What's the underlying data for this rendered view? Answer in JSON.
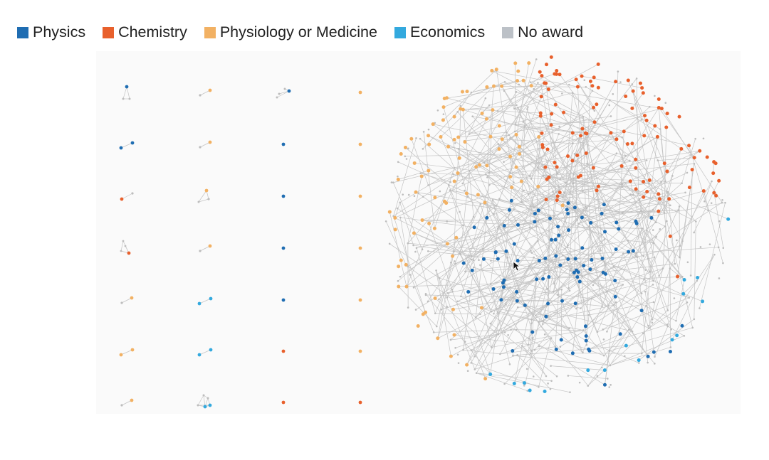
{
  "legend": [
    {
      "label": "Physics",
      "color": "#1f6db2",
      "key": "physics"
    },
    {
      "label": "Chemistry",
      "color": "#e8602c",
      "key": "chemistry"
    },
    {
      "label": "Physiology or Medicine",
      "color": "#f2b163",
      "key": "medicine"
    },
    {
      "label": "Economics",
      "color": "#33a9de",
      "key": "economics"
    },
    {
      "label": "No award",
      "color": "#bcc1c7",
      "key": "none"
    }
  ],
  "colors": {
    "edge": "#c4c4c4",
    "physics": "#1f6db2",
    "chemistry": "#e8602c",
    "medicine": "#f2b163",
    "economics": "#33a9de",
    "none": "#bdbdbd"
  },
  "small_components": [
    {
      "row": 0,
      "col": 0,
      "kind": "triangle",
      "award": "physics"
    },
    {
      "row": 0,
      "col": 1,
      "kind": "pair",
      "award": "medicine"
    },
    {
      "row": 0,
      "col": 2,
      "kind": "fan",
      "award": "physics"
    },
    {
      "row": 0,
      "col": 3,
      "kind": "single",
      "award": "medicine"
    },
    {
      "row": 1,
      "col": 0,
      "kind": "pair2",
      "award": "physics"
    },
    {
      "row": 1,
      "col": 1,
      "kind": "pair",
      "award": "medicine"
    },
    {
      "row": 1,
      "col": 2,
      "kind": "single",
      "award": "physics"
    },
    {
      "row": 1,
      "col": 3,
      "kind": "single",
      "award": "medicine"
    },
    {
      "row": 2,
      "col": 0,
      "kind": "pairLeft",
      "award": "chemistry"
    },
    {
      "row": 2,
      "col": 1,
      "kind": "triangle2",
      "award": "medicine"
    },
    {
      "row": 2,
      "col": 2,
      "kind": "single",
      "award": "physics"
    },
    {
      "row": 2,
      "col": 3,
      "kind": "single",
      "award": "medicine"
    },
    {
      "row": 3,
      "col": 0,
      "kind": "triangle3",
      "award": "chemistry"
    },
    {
      "row": 3,
      "col": 1,
      "kind": "pair",
      "award": "medicine"
    },
    {
      "row": 3,
      "col": 2,
      "kind": "single",
      "award": "physics"
    },
    {
      "row": 3,
      "col": 3,
      "kind": "single",
      "award": "medicine"
    },
    {
      "row": 4,
      "col": 0,
      "kind": "pair",
      "award": "medicine"
    },
    {
      "row": 4,
      "col": 1,
      "kind": "pair2",
      "award": "economics"
    },
    {
      "row": 4,
      "col": 2,
      "kind": "single",
      "award": "physics"
    },
    {
      "row": 4,
      "col": 3,
      "kind": "single",
      "award": "medicine"
    },
    {
      "row": 5,
      "col": 0,
      "kind": "pair2",
      "award": "medicine"
    },
    {
      "row": 5,
      "col": 1,
      "kind": "pair2",
      "award": "economics"
    },
    {
      "row": 5,
      "col": 2,
      "kind": "single",
      "award": "chemistry"
    },
    {
      "row": 5,
      "col": 3,
      "kind": "single",
      "award": "medicine"
    },
    {
      "row": 6,
      "col": 0,
      "kind": "pair",
      "award": "medicine"
    },
    {
      "row": 6,
      "col": 1,
      "kind": "cluster",
      "award": "economics"
    },
    {
      "row": 6,
      "col": 2,
      "kind": "single",
      "award": "chemistry"
    },
    {
      "row": 6,
      "col": 3,
      "kind": "single",
      "award": "chemistry"
    }
  ]
}
